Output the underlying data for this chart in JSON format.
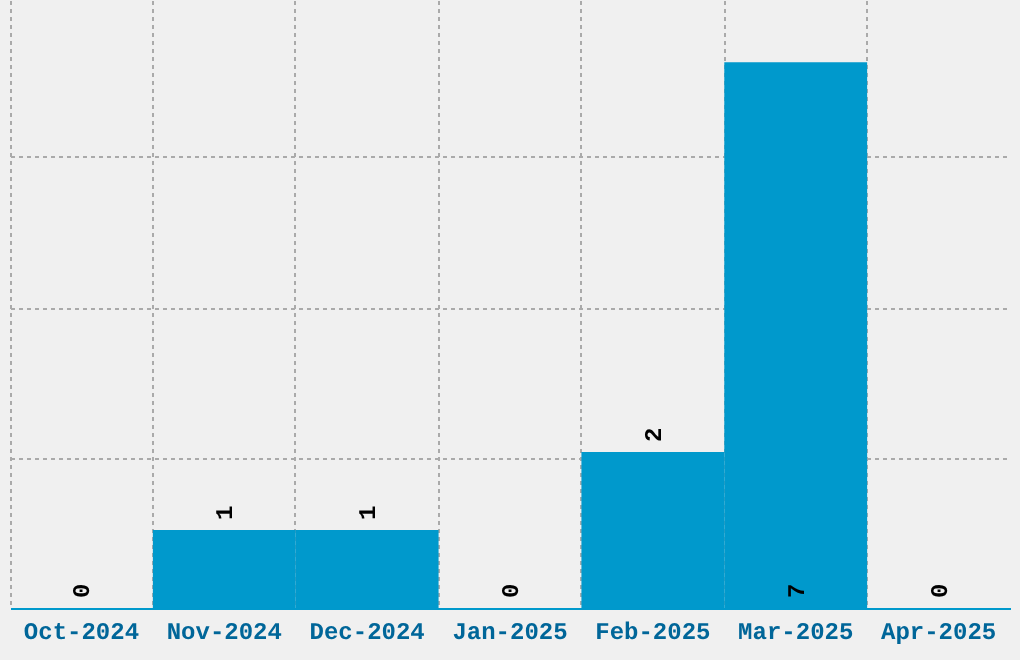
{
  "chart_data": {
    "type": "bar",
    "categories": [
      "Oct-2024",
      "Nov-2024",
      "Dec-2024",
      "Jan-2025",
      "Feb-2025",
      "Mar-2025",
      "Apr-2025"
    ],
    "values": [
      0,
      1,
      1,
      0,
      2,
      7,
      0
    ],
    "color": "#0099cc",
    "data_labels": true,
    "grid": true,
    "ylim": [
      0,
      7.8
    ],
    "yticks": [
      {
        "value": 1.93,
        "label": null
      },
      {
        "value": 3.86,
        "label": null
      },
      {
        "value": 5.8,
        "label": null
      }
    ],
    "tick_labels": "x"
  }
}
